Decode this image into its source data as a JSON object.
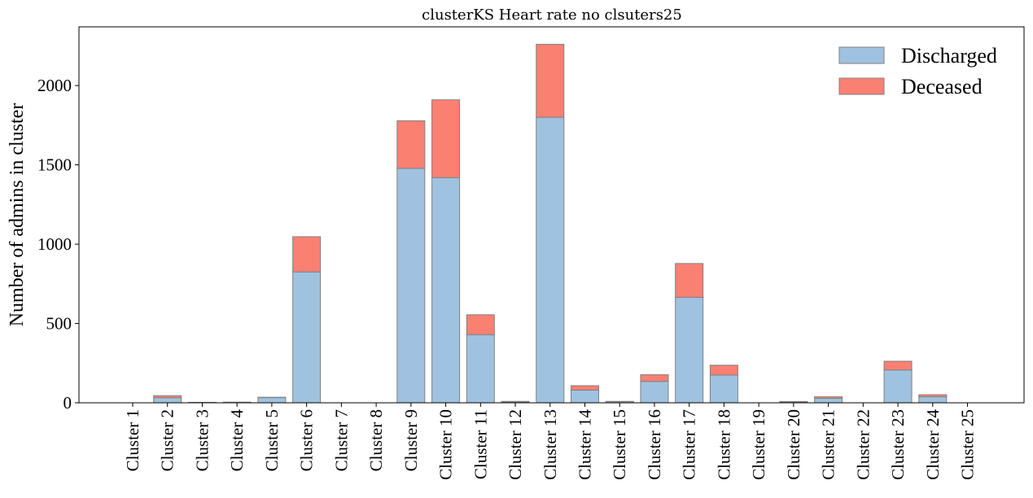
{
  "chart_data": {
    "type": "bar",
    "stacked": true,
    "title": "clusterKS Heart rate no clsuters25",
    "xlabel": "",
    "ylabel": "Number of admins in cluster",
    "ylim": [
      0,
      2370
    ],
    "yticks": [
      0,
      500,
      1000,
      1500,
      2000
    ],
    "grid": false,
    "legend_position": "top-right",
    "categories": [
      "Cluster 1",
      "Cluster 2",
      "Cluster 3",
      "Cluster 4",
      "Cluster 5",
      "Cluster 6",
      "Cluster 7",
      "Cluster 8",
      "Cluster 9",
      "Cluster 10",
      "Cluster 11",
      "Cluster 12",
      "Cluster 13",
      "Cluster 14",
      "Cluster 15",
      "Cluster 16",
      "Cluster 17",
      "Cluster 18",
      "Cluster 19",
      "Cluster 20",
      "Cluster 21",
      "Cluster 22",
      "Cluster 23",
      "Cluster 24",
      "Cluster 25"
    ],
    "series": [
      {
        "name": "Discharged",
        "color": "#9fc2e0",
        "values": [
          0,
          32,
          2,
          3,
          33,
          825,
          0,
          0,
          1478,
          1420,
          430,
          6,
          1800,
          80,
          7,
          135,
          665,
          175,
          0,
          5,
          28,
          0,
          207,
          38,
          0
        ]
      },
      {
        "name": "Deceased",
        "color": "#fa8072",
        "values": [
          0,
          13,
          1,
          1,
          2,
          222,
          0,
          0,
          300,
          490,
          125,
          3,
          460,
          28,
          2,
          42,
          213,
          62,
          0,
          3,
          10,
          0,
          55,
          13,
          0
        ]
      }
    ]
  }
}
